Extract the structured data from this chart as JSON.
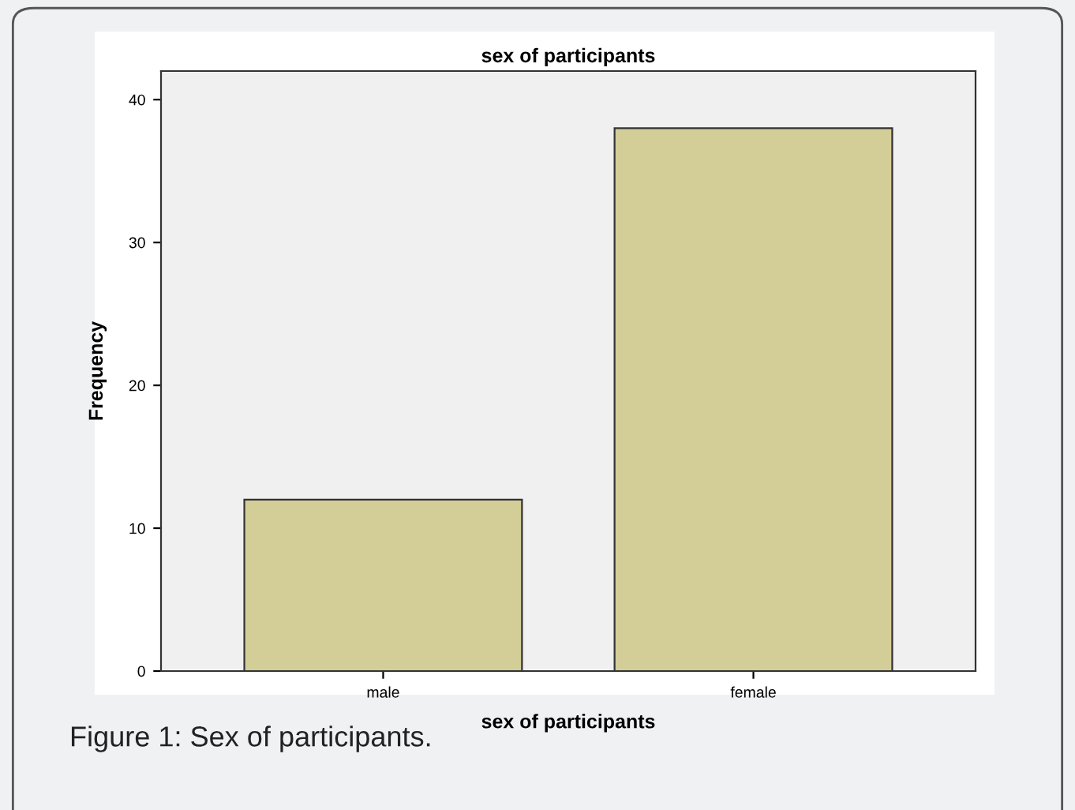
{
  "chart_data": {
    "type": "bar",
    "title": "sex of participants",
    "xlabel": "sex of participants",
    "ylabel": "Frequency",
    "categories": [
      "male",
      "female"
    ],
    "values": [
      12,
      38
    ],
    "color": "#d3ce97",
    "ylim": [
      0,
      42
    ],
    "yticks": [
      0,
      10,
      20,
      30,
      40
    ],
    "grid": false,
    "annotations": [
      "Figure 1: Sex of participants."
    ]
  }
}
